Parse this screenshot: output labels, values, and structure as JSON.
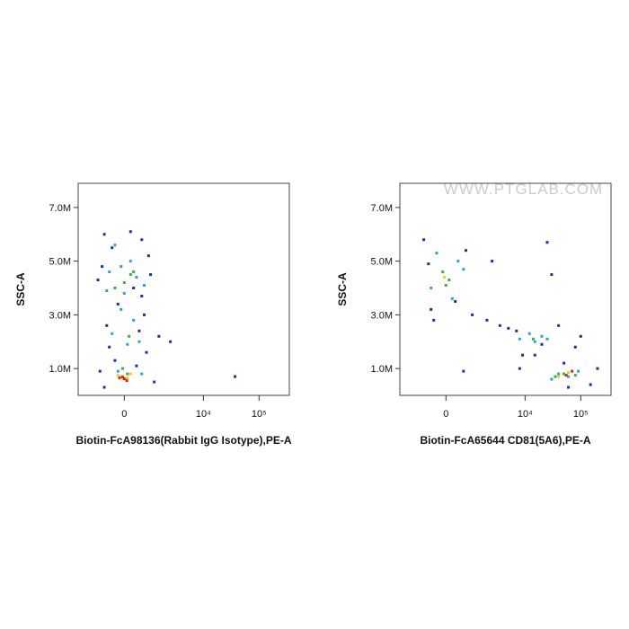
{
  "chart_data": [
    {
      "type": "scatter",
      "xscale": "biexponential",
      "xlabel": "Biotin-FcA98136(Rabbit IgG Isotype),PE-A",
      "ylabel": "SSC-A",
      "xlim": [
        -2500,
        350000
      ],
      "ylim": [
        0,
        7900000
      ],
      "xticks": [
        0,
        {
          "value": 10000,
          "label": "10⁴"
        },
        {
          "value": 100000,
          "label": "10⁵"
        }
      ],
      "yticks": [
        {
          "value": 1000000,
          "label": "1.0M"
        },
        {
          "value": 3000000,
          "label": "3.0M"
        },
        {
          "value": 5000000,
          "label": "5.0M"
        },
        {
          "value": 7000000,
          "label": "7.0M"
        }
      ],
      "series": [
        {
          "color": "#1a2fb0",
          "x": [
            -700,
            600,
            -400,
            900,
            -800,
            300,
            -200,
            700,
            -600,
            500,
            1500,
            -500,
            800,
            -300,
            400,
            -900,
            1200,
            2500,
            -700,
            600,
            37000,
            1000,
            -1000,
            200
          ],
          "y": [
            6000000,
            5800000,
            5500000,
            5200000,
            4800000,
            4000000,
            3400000,
            3000000,
            2600000,
            2400000,
            2200000,
            1800000,
            1600000,
            1300000,
            1100000,
            900000,
            500000,
            2000000,
            300000,
            3700000,
            700000,
            4500000,
            4300000,
            6100000
          ]
        },
        {
          "color": "#22a8d8",
          "x": [
            -300,
            200,
            -500,
            400,
            0,
            -100,
            300,
            -400,
            500,
            100,
            -200,
            600,
            700,
            -600
          ],
          "y": [
            5600000,
            5000000,
            4600000,
            4400000,
            3800000,
            3200000,
            2800000,
            2300000,
            2000000,
            1900000,
            900000,
            800000,
            4100000,
            3900000
          ]
        },
        {
          "color": "#3cb043",
          "x": [
            -100,
            200,
            0,
            -300,
            150,
            -50,
            100,
            300
          ],
          "y": [
            4800000,
            4500000,
            4200000,
            4000000,
            2200000,
            1000000,
            800000,
            4600000
          ]
        },
        {
          "color": "#e8d21e",
          "x": [
            -200,
            100,
            0,
            -100,
            200
          ],
          "y": [
            750000,
            650000,
            600000,
            700000,
            800000
          ]
        },
        {
          "color": "#e02020",
          "x": [
            0,
            -50,
            80,
            -150
          ],
          "y": [
            620000,
            680000,
            550000,
            650000
          ]
        }
      ]
    },
    {
      "type": "scatter",
      "xscale": "biexponential",
      "xlabel": "Biotin-FcA65644 CD81(5A6),PE-A",
      "ylabel": "SSC-A",
      "watermark": "WWW.PTGLAB.COM",
      "xlim": [
        -2500,
        350000
      ],
      "ylim": [
        0,
        7900000
      ],
      "xticks": [
        0,
        {
          "value": 10000,
          "label": "10⁴"
        },
        {
          "value": 100000,
          "label": "10⁵"
        }
      ],
      "yticks": [
        {
          "value": 1000000,
          "label": "1.0M"
        },
        {
          "value": 3000000,
          "label": "3.0M"
        },
        {
          "value": 5000000,
          "label": "5.0M"
        },
        {
          "value": 7000000,
          "label": "7.0M"
        }
      ],
      "series": [
        {
          "color": "#1a2fb0",
          "x": [
            -800,
            700,
            -500,
            1000,
            2000,
            3500,
            5000,
            7000,
            9000,
            20000,
            50000,
            150000,
            80000,
            30000,
            600,
            -400,
            200000,
            15000,
            40000,
            60000,
            8000,
            2500,
            -600,
            300,
            25000,
            100000
          ],
          "y": [
            5800000,
            5400000,
            3200000,
            3000000,
            2800000,
            2600000,
            2500000,
            2400000,
            1500000,
            1900000,
            1200000,
            400000,
            1800000,
            4500000,
            900000,
            2800000,
            1000000,
            1500000,
            2600000,
            300000,
            1000000,
            5000000,
            4900000,
            3500000,
            5700000,
            2200000
          ]
        },
        {
          "color": "#22a8d8",
          "x": [
            -300,
            400,
            -500,
            200,
            8000,
            12000,
            15000,
            20000,
            30000,
            40000,
            60000,
            90000,
            25000,
            600
          ],
          "y": [
            5300000,
            5000000,
            4000000,
            3600000,
            2100000,
            2300000,
            2000000,
            2200000,
            600000,
            800000,
            700000,
            900000,
            2100000,
            4700000
          ]
        },
        {
          "color": "#3cb043",
          "x": [
            -100,
            100,
            0,
            14000,
            35000,
            50000,
            80000
          ],
          "y": [
            4600000,
            4300000,
            4100000,
            2100000,
            700000,
            800000,
            750000
          ]
        },
        {
          "color": "#e8d21e",
          "x": [
            40000,
            60000,
            -50
          ],
          "y": [
            700000,
            850000,
            4400000
          ]
        },
        {
          "color": "#e02020",
          "x": [
            55000,
            70000
          ],
          "y": [
            750000,
            900000
          ]
        }
      ]
    }
  ]
}
